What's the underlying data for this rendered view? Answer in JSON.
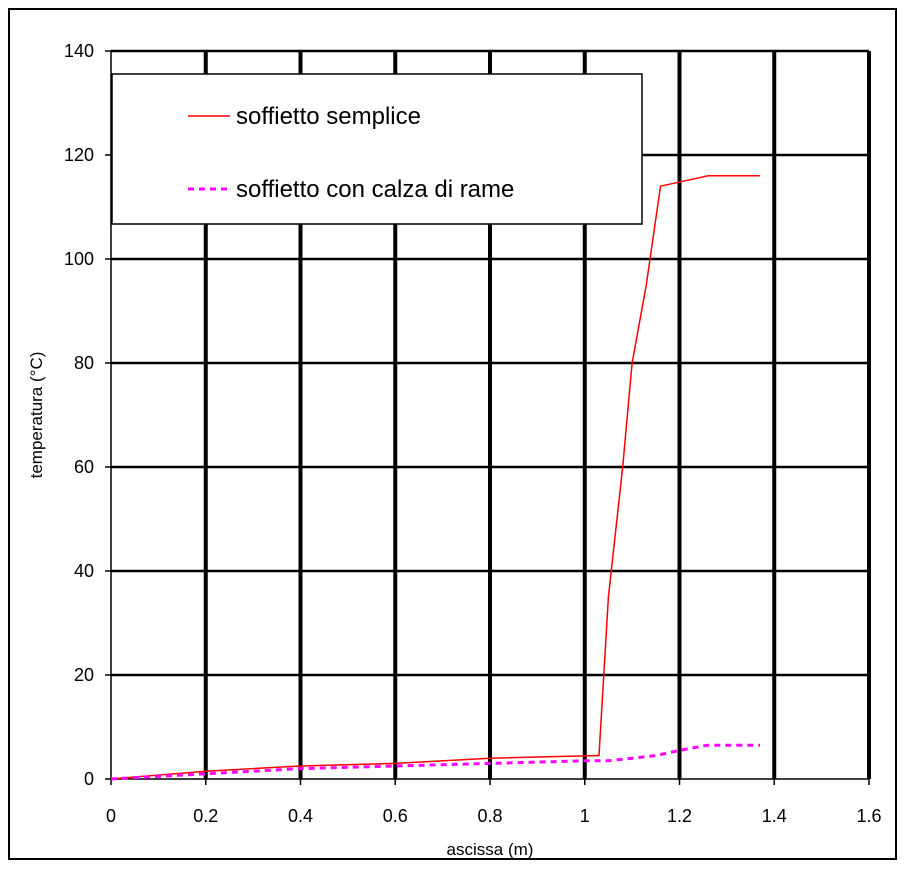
{
  "chart_data": {
    "type": "line",
    "xlabel": "ascissa (m)",
    "ylabel": "temperatura (°C)",
    "xlim": [
      0,
      1.6
    ],
    "ylim": [
      0,
      140
    ],
    "x_ticks": [
      0,
      0.2,
      0.4,
      0.6,
      0.8,
      1,
      1.2,
      1.4,
      1.6
    ],
    "x_tick_labels": [
      "0",
      "0.2",
      "0.4",
      "0.6",
      "0.8",
      "1",
      "1.2",
      "1.4",
      "1.6"
    ],
    "y_ticks": [
      0,
      20,
      40,
      60,
      80,
      100,
      120,
      140
    ],
    "y_tick_labels": [
      "0",
      "20",
      "40",
      "60",
      "80",
      "100",
      "120",
      "140"
    ],
    "grid": true,
    "legend_position": "top-left",
    "series": [
      {
        "name": "soffietto semplice",
        "color": "#ff0000",
        "line_style": "solid",
        "x": [
          0,
          0.2,
          0.4,
          0.6,
          0.8,
          1.02,
          1.03,
          1.05,
          1.08,
          1.1,
          1.13,
          1.16,
          1.26,
          1.37
        ],
        "y": [
          0,
          1.5,
          2.5,
          3,
          4,
          4.5,
          4.5,
          35,
          60,
          80,
          95,
          114,
          116,
          116
        ]
      },
      {
        "name": "soffietto con calza di rame",
        "color": "#ff00ff",
        "line_style": "dashed",
        "x": [
          0,
          0.2,
          0.4,
          0.6,
          0.8,
          1.0,
          1.05,
          1.1,
          1.15,
          1.2,
          1.26,
          1.37
        ],
        "y": [
          0,
          1,
          2,
          2.5,
          3,
          3.5,
          3.5,
          4,
          4.5,
          5.5,
          6.5,
          6.5
        ]
      }
    ]
  }
}
